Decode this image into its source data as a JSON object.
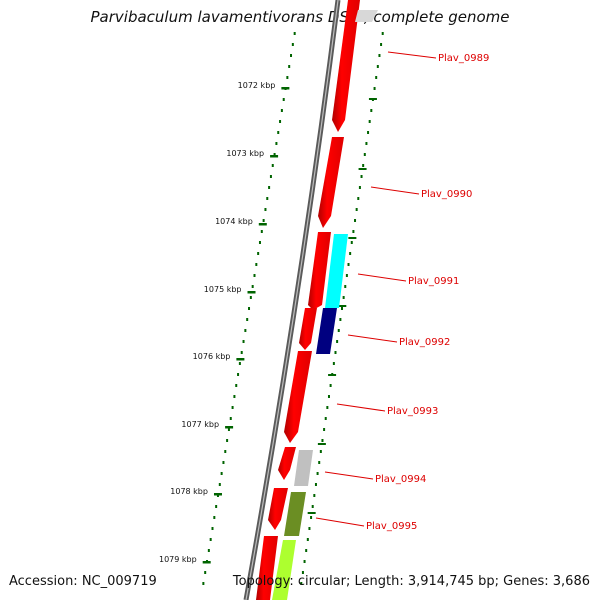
{
  "title": "Parvibaculum lavamentivorans DS-1, complete genome",
  "footer": {
    "accession": "Accession: NC_009719",
    "topology": "Topology: circular; Length: 3,914,745 bp; Genes: 3,686"
  },
  "ticks": [
    "1072 kbp",
    "1073 kbp",
    "1074 kbp",
    "1075 kbp",
    "1076 kbp",
    "1077 kbp",
    "1078 kbp",
    "1079 kbp"
  ],
  "genes": [
    {
      "label": "Plav_0989",
      "color": "#ff0000",
      "track": "forward"
    },
    {
      "label": "Plav_0990",
      "color": "#ff0000",
      "track": "forward"
    },
    {
      "label": "Plav_0991",
      "color": "#00ffff",
      "track": "cog"
    },
    {
      "label": "Plav_0992",
      "color": "#000080",
      "track": "cog"
    },
    {
      "label": "Plav_0993",
      "color": "#ff0000",
      "track": "forward"
    },
    {
      "label": "Plav_0994",
      "color": "#c0c0c0",
      "track": "cog"
    },
    {
      "label": "Plav_0995",
      "color": "#6b8e23",
      "track": "cog"
    }
  ],
  "colors": {
    "backbone": "#808080",
    "cds": "#ff0000",
    "gc_skew": "#006400",
    "label": "#dd0000",
    "extra_gene": "#adff2f"
  }
}
